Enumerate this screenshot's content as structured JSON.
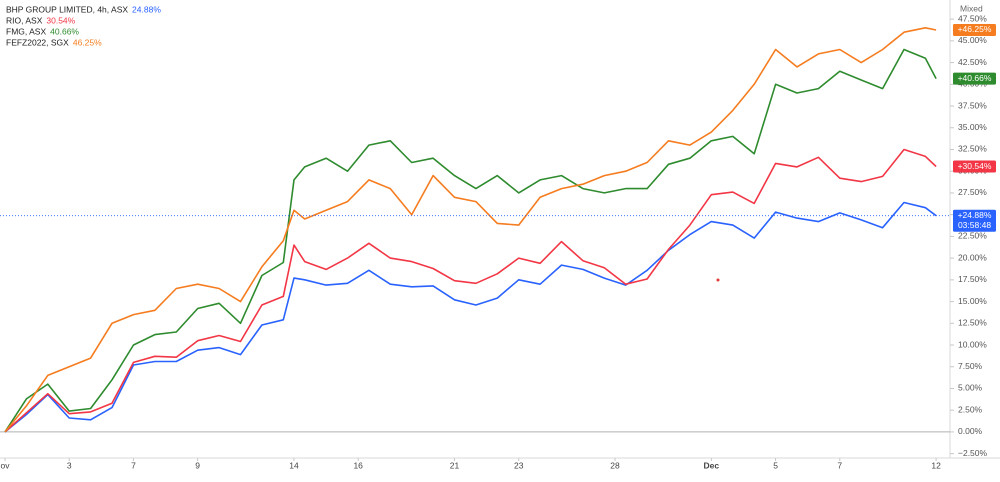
{
  "chart_data": {
    "type": "line",
    "scale_label": "Mixed",
    "x": [
      0,
      2,
      4,
      6,
      8,
      10,
      12,
      14,
      16,
      18,
      20,
      22,
      24,
      26,
      27,
      28,
      30,
      32,
      34,
      36,
      38,
      40,
      42,
      44,
      46,
      48,
      50,
      52,
      54,
      56,
      58,
      60,
      62,
      64,
      66,
      68,
      70,
      72,
      74,
      76,
      78,
      80,
      82,
      84,
      86,
      87
    ],
    "xlim": [
      -0.47,
      88.3
    ],
    "xticks": [
      {
        "value": 0,
        "label": "ov"
      },
      {
        "value": 6,
        "label": "3"
      },
      {
        "value": 12,
        "label": "7"
      },
      {
        "value": 18,
        "label": "9"
      },
      {
        "value": 27,
        "label": "14"
      },
      {
        "value": 33,
        "label": "16"
      },
      {
        "value": 42,
        "label": "21"
      },
      {
        "value": 48,
        "label": "23"
      },
      {
        "value": 57,
        "label": "28"
      },
      {
        "value": 66,
        "label": "Dec"
      },
      {
        "value": 72,
        "label": "5"
      },
      {
        "value": 78,
        "label": "7"
      },
      {
        "value": 87,
        "label": "12"
      }
    ],
    "ylim": [
      -3.0,
      49.7
    ],
    "yticks": [
      {
        "value": -2.5,
        "label": "−2.50%"
      },
      {
        "value": 0,
        "label": "0.00%"
      },
      {
        "value": 2.5,
        "label": "2.50%"
      },
      {
        "value": 5,
        "label": "5.00%"
      },
      {
        "value": 7.5,
        "label": "7.50%"
      },
      {
        "value": 10,
        "label": "10.00%"
      },
      {
        "value": 12.5,
        "label": "12.50%"
      },
      {
        "value": 15,
        "label": "15.00%"
      },
      {
        "value": 17.5,
        "label": "17.50%"
      },
      {
        "value": 20,
        "label": "20.00%"
      },
      {
        "value": 22.5,
        "label": "22.50%"
      },
      {
        "value": 25,
        "label": "25.00%"
      },
      {
        "value": 27.5,
        "label": "27.50%"
      },
      {
        "value": 30,
        "label": "30.00%"
      },
      {
        "value": 32.5,
        "label": "32.50%"
      },
      {
        "value": 35,
        "label": "35.00%"
      },
      {
        "value": 37.5,
        "label": "37.50%"
      },
      {
        "value": 40,
        "label": "40.00%"
      },
      {
        "value": 42.5,
        "label": "42.50%"
      },
      {
        "value": 45,
        "label": "45.00%"
      },
      {
        "value": 47.5,
        "label": "47.50%"
      }
    ],
    "series": [
      {
        "name": "BHP GROUP LIMITED, 4h, ASX",
        "color": "#2962ff",
        "legend_value": "24.88%",
        "axis_label": "+24.88%",
        "countdown": "03:58:48",
        "values": [
          0,
          2.0,
          4.3,
          1.6,
          1.4,
          2.8,
          7.7,
          8.1,
          8.1,
          9.4,
          9.7,
          8.9,
          12.3,
          12.9,
          17.7,
          17.5,
          16.9,
          17.1,
          18.6,
          17.0,
          16.7,
          16.8,
          15.2,
          14.6,
          15.4,
          17.5,
          17.0,
          19.2,
          18.7,
          17.7,
          16.9,
          18.6,
          20.9,
          22.7,
          24.2,
          23.8,
          22.3,
          25.3,
          24.6,
          24.2,
          25.2,
          24.4,
          23.5,
          26.4,
          25.8,
          24.88
        ]
      },
      {
        "name": "RIO, ASX",
        "color": "#f23645",
        "legend_value": "30.54%",
        "axis_label": "+30.54%",
        "values": [
          0,
          2.2,
          4.4,
          2.1,
          2.3,
          3.3,
          8.0,
          8.7,
          8.6,
          10.5,
          11.1,
          10.4,
          14.6,
          15.6,
          21.5,
          19.6,
          18.7,
          20.0,
          21.7,
          20.0,
          19.6,
          18.8,
          17.4,
          17.1,
          18.2,
          20.0,
          19.4,
          21.9,
          19.7,
          18.9,
          17.0,
          17.6,
          21.0,
          23.8,
          27.3,
          27.6,
          26.3,
          30.9,
          30.5,
          31.6,
          29.2,
          28.8,
          29.4,
          32.5,
          31.7,
          30.54
        ]
      },
      {
        "name": "FMG, ASX",
        "color": "#2e8b2e",
        "legend_value": "40.66%",
        "axis_label": "+40.66%",
        "values": [
          0,
          3.8,
          5.5,
          2.4,
          2.7,
          6.0,
          10.0,
          11.2,
          11.5,
          14.2,
          14.8,
          12.5,
          18.0,
          19.5,
          29.0,
          30.5,
          31.5,
          30.0,
          33.0,
          33.5,
          31.0,
          31.5,
          29.5,
          28.0,
          29.5,
          27.5,
          29.0,
          29.5,
          28.0,
          27.5,
          28.0,
          28.0,
          30.8,
          31.5,
          33.5,
          34.0,
          32.0,
          40.0,
          39.0,
          39.5,
          41.5,
          40.5,
          39.5,
          44.0,
          43.0,
          40.66
        ]
      },
      {
        "name": "FEFZ2022, SGX",
        "color": "#f57c1f",
        "legend_value": "46.25%",
        "axis_label": "+46.25%",
        "values": [
          0,
          3.0,
          6.5,
          7.5,
          8.5,
          12.5,
          13.5,
          14.0,
          16.5,
          17.0,
          16.5,
          15.0,
          19.0,
          22.0,
          25.5,
          24.5,
          25.5,
          26.5,
          29.0,
          28.0,
          25.0,
          29.5,
          27.0,
          26.5,
          24.0,
          23.8,
          27.0,
          28.0,
          28.5,
          29.5,
          30.0,
          31.0,
          33.5,
          33.0,
          34.5,
          37.0,
          40.0,
          44.0,
          42.0,
          43.5,
          44.0,
          42.5,
          44.0,
          46.0,
          46.5,
          46.25
        ]
      }
    ]
  }
}
